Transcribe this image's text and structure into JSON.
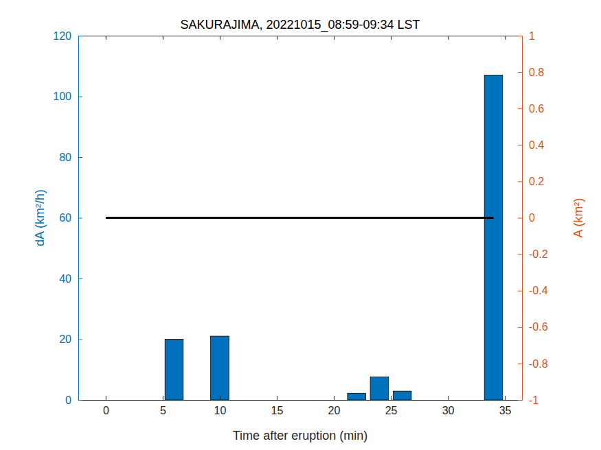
{
  "chart_data": {
    "type": "bar",
    "title": "SAKURAJIMA, 20221015_08:59-09:34 LST",
    "x_label": "Time after eruption (min)",
    "y_label": "dA (km²/h)",
    "y2_label": "A (km²)",
    "xlim": [
      -2.4,
      36.5
    ],
    "xticks": [
      0,
      5,
      10,
      15,
      20,
      25,
      30,
      35
    ],
    "ylim": [
      0,
      120
    ],
    "yticks": [
      0,
      20,
      40,
      60,
      80,
      100,
      120
    ],
    "y2lim": [
      -1,
      1
    ],
    "y2ticks": [
      -1,
      -0.8,
      -0.6,
      -0.4,
      -0.2,
      0,
      0.2,
      0.4,
      0.6,
      0.8,
      1
    ],
    "grid": false,
    "series": [
      {
        "type": "bar",
        "color": "#0072bd",
        "x": [
          6,
          10,
          22,
          24,
          26,
          34
        ],
        "values": [
          20,
          21,
          2.2,
          7.6,
          2.9,
          107
        ]
      },
      {
        "type": "line",
        "color": "#000000",
        "axis": "y2",
        "x": [
          0,
          34
        ],
        "values": [
          0,
          0
        ]
      }
    ]
  }
}
